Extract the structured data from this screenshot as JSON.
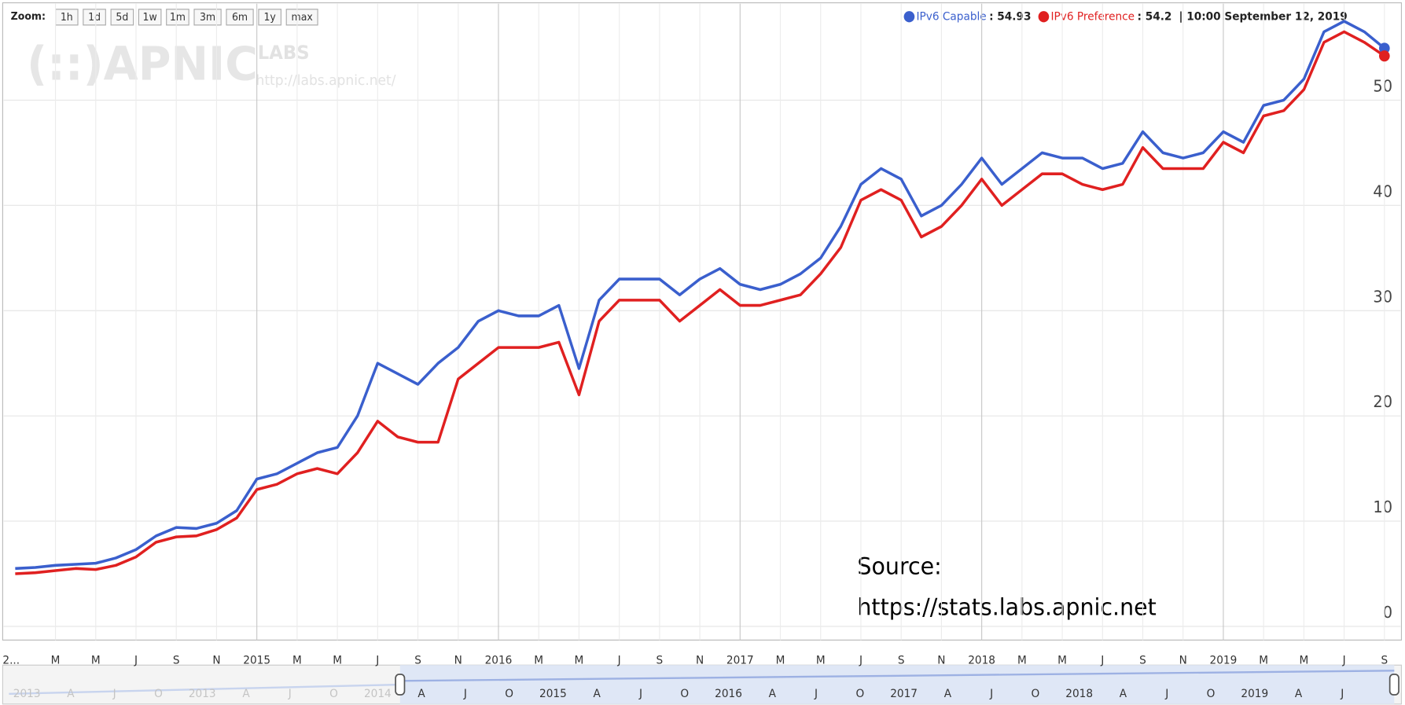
{
  "header": {
    "zoom_label": "Zoom:",
    "zoom_buttons": [
      "1h",
      "1d",
      "5d",
      "1w",
      "1m",
      "3m",
      "6m",
      "1y",
      "max"
    ],
    "readout_date": "| 10:00 September 12, 2019",
    "watermark": {
      "logo": "(::)APNIC",
      "labs": "LABS",
      "url": "http://labs.apnic.net/"
    }
  },
  "chart_data": {
    "type": "line",
    "categories": [
      "2...",
      null,
      "M",
      null,
      "M",
      null,
      "J",
      null,
      "S",
      null,
      "N",
      null,
      "2015",
      null,
      "M",
      null,
      "M",
      null,
      "J",
      null,
      "S",
      null,
      "N",
      null,
      "2016",
      null,
      "M",
      null,
      "M",
      null,
      "J",
      null,
      "S",
      null,
      "N",
      null,
      "2017",
      null,
      "M",
      null,
      "M",
      null,
      "J",
      null,
      "S",
      null,
      "N",
      null,
      "2018",
      null,
      "M",
      null,
      "M",
      null,
      "J",
      null,
      "S",
      null,
      "N",
      null,
      "2019",
      null,
      "M",
      null,
      "M",
      null,
      "J",
      null,
      "S"
    ],
    "series": [
      {
        "name": "IPv6 Capable",
        "color": "#3a5fcd",
        "current_label": ": 54.93",
        "values": [
          5.5,
          5.6,
          5.8,
          5.9,
          6.0,
          6.5,
          7.3,
          8.6,
          9.4,
          9.3,
          9.8,
          11.0,
          14.0,
          14.5,
          15.5,
          16.5,
          17.0,
          20.0,
          25.0,
          24.0,
          23.0,
          25.0,
          26.5,
          29.0,
          30.0,
          29.5,
          29.5,
          30.5,
          24.5,
          31.0,
          33.0,
          33.0,
          33.0,
          31.5,
          33.0,
          34.0,
          32.5,
          32.0,
          32.5,
          33.5,
          35.0,
          38.0,
          42.0,
          43.5,
          42.5,
          39.0,
          40.0,
          42.0,
          44.5,
          42.0,
          43.5,
          45.0,
          44.5,
          44.5,
          43.5,
          44.0,
          47.0,
          45.0,
          44.5,
          45.0,
          47.0,
          46.0,
          49.5,
          50.0,
          52.0,
          56.5,
          57.5,
          56.5,
          54.93
        ]
      },
      {
        "name": "IPv6 Preference",
        "color": "#e02020",
        "current_label": ": 54.2",
        "values": [
          5.0,
          5.1,
          5.3,
          5.5,
          5.4,
          5.8,
          6.6,
          8.0,
          8.5,
          8.6,
          9.2,
          10.3,
          13.0,
          13.5,
          14.5,
          15.0,
          14.5,
          16.5,
          19.5,
          18.0,
          17.5,
          17.5,
          23.5,
          25.0,
          26.5,
          26.5,
          26.5,
          27.0,
          22.0,
          29.0,
          31.0,
          31.0,
          31.0,
          29.0,
          30.5,
          32.0,
          30.5,
          30.5,
          31.0,
          31.5,
          33.5,
          36.0,
          40.5,
          41.5,
          40.5,
          37.0,
          38.0,
          40.0,
          42.5,
          40.0,
          41.5,
          43.0,
          43.0,
          42.0,
          41.5,
          42.0,
          45.5,
          43.5,
          43.5,
          43.5,
          46.0,
          45.0,
          48.5,
          49.0,
          51.0,
          55.5,
          56.5,
          55.5,
          54.2
        ]
      }
    ],
    "ylim": [
      -1.3,
      58.9
    ],
    "yticks": [
      0,
      10,
      20,
      30,
      40,
      50
    ],
    "grid": true,
    "annotations": [
      "Source:",
      "https://stats.labs.apnic.net"
    ]
  },
  "range_selector": {
    "labels": [
      "2013",
      "A",
      "J",
      "O",
      "2013",
      "A",
      "J",
      "O",
      "2014",
      "A",
      "J",
      "O",
      "2015",
      "A",
      "J",
      "O",
      "2016",
      "A",
      "J",
      "O",
      "2017",
      "A",
      "J",
      "O",
      "2018",
      "A",
      "J",
      "O",
      "2019",
      "A",
      "J"
    ]
  }
}
